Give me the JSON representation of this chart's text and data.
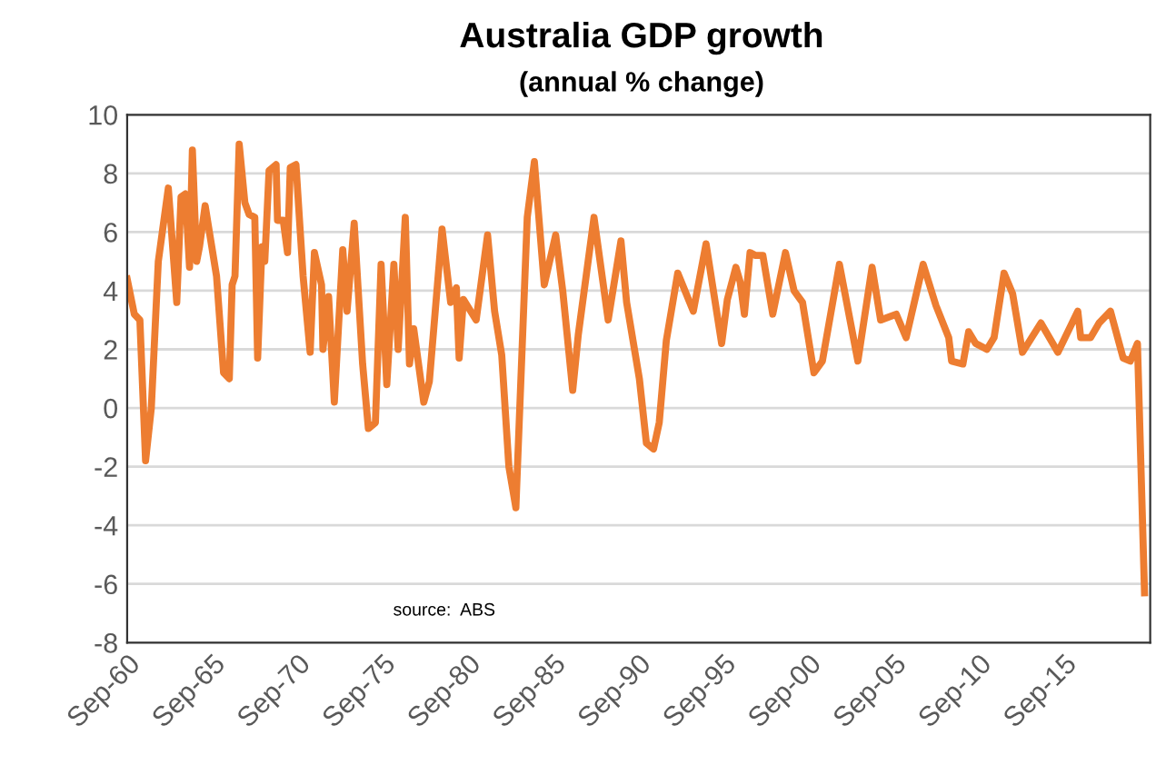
{
  "chart_data": {
    "type": "line",
    "title": "Australia GDP growth",
    "subtitle": "(annual % change)",
    "annotations": [
      "source:  ABS"
    ],
    "x": [
      "1960-09",
      "1961-02",
      "1961-06",
      "1961-10",
      "1962-02",
      "1962-07",
      "1963-02",
      "1963-08",
      "1963-11",
      "1964-02",
      "1964-05",
      "1964-07",
      "1964-10",
      "1964-12",
      "1965-04",
      "1965-07",
      "1965-12",
      "1966-05",
      "1966-09",
      "1966-11",
      "1967-01",
      "1967-04",
      "1967-08",
      "1967-11",
      "1968-03",
      "1968-05",
      "1968-08",
      "1968-10",
      "1969-01",
      "1969-06",
      "1969-07",
      "1969-11",
      "1970-02",
      "1970-04",
      "1970-08",
      "1971-01",
      "1971-06",
      "1971-09",
      "1972-02",
      "1972-03",
      "1972-07",
      "1972-11",
      "1973-05",
      "1973-08",
      "1974-01",
      "1974-07",
      "1974-11",
      "1975-04",
      "1975-08",
      "1975-12",
      "1976-05",
      "1976-08",
      "1977-01",
      "1977-04",
      "1977-07",
      "1978-02",
      "1978-06",
      "1979-03",
      "1979-09",
      "1980-01",
      "1980-03",
      "1980-06",
      "1981-03",
      "1981-11",
      "1982-04",
      "1982-09",
      "1983-02",
      "1983-07",
      "1984-03",
      "1984-08",
      "1985-03",
      "1985-11",
      "1986-04",
      "1986-11",
      "1987-03",
      "1988-02",
      "1988-12",
      "1989-09",
      "1990-01",
      "1990-10",
      "1991-03",
      "1991-08",
      "1991-12",
      "1992-05",
      "1993-01",
      "1993-12",
      "1994-09",
      "1995-08",
      "1995-12",
      "1996-06",
      "1996-09",
      "1996-12",
      "1997-04",
      "1997-08",
      "1998-01",
      "1998-08",
      "1999-05",
      "1999-11",
      "2000-05",
      "2001-01",
      "2001-07",
      "2002-07",
      "2003-08",
      "2004-06",
      "2004-12",
      "2005-11",
      "2006-06",
      "2007-06",
      "2008-03",
      "2008-12",
      "2009-02",
      "2009-10",
      "2010-02",
      "2010-07",
      "2011-03",
      "2011-08",
      "2012-03",
      "2012-09",
      "2013-04",
      "2014-05",
      "2015-05",
      "2016-07",
      "2016-09",
      "2017-04",
      "2017-10",
      "2018-06",
      "2019-03",
      "2019-08",
      "2020-01",
      "2020-06"
    ],
    "series": [
      {
        "color": "#ed7d31",
        "values": [
          4.4,
          3.2,
          3.0,
          -1.8,
          0,
          5.0,
          7.5,
          3.6,
          7.2,
          7.3,
          4.8,
          8.8,
          5.0,
          5.5,
          6.9,
          6.0,
          4.5,
          1.2,
          1.0,
          4.2,
          4.5,
          9.0,
          7.0,
          6.6,
          6.5,
          1.7,
          5.5,
          5.0,
          8.1,
          8.3,
          6.4,
          6.4,
          5.3,
          8.2,
          8.3,
          4.5,
          1.9,
          5.3,
          4.2,
          2.0,
          3.8,
          0.2,
          5.4,
          3.3,
          6.3,
          1.5,
          -0.7,
          -0.5,
          4.9,
          0.8,
          4.9,
          2.0,
          6.5,
          1.5,
          2.7,
          0.2,
          0.9,
          6.1,
          3.6,
          4.1,
          1.7,
          3.7,
          3.0,
          5.9,
          3.3,
          1.8,
          -2.0,
          -3.4,
          6.5,
          8.4,
          4.2,
          5.9,
          4.0,
          0.6,
          2.5,
          6.5,
          3.0,
          5.7,
          3.6,
          1.0,
          -1.2,
          -1.4,
          -0.5,
          2.3,
          4.6,
          3.3,
          5.6,
          2.2,
          3.7,
          4.8,
          4.3,
          3.2,
          5.3,
          5.2,
          5.2,
          3.2,
          5.3,
          4.0,
          3.6,
          1.2,
          1.6,
          4.9,
          1.6,
          4.8,
          3.0,
          3.2,
          2.4,
          4.9,
          3.5,
          2.4,
          1.6,
          1.5,
          2.6,
          2.2,
          2.0,
          2.4,
          4.6,
          3.9,
          1.9,
          2.9,
          1.9,
          3.3,
          2.4,
          2.4,
          2.9,
          3.3,
          1.7,
          1.6,
          2.2,
          -6.3
        ]
      }
    ],
    "xlim": [
      "1960-09",
      "2020-10"
    ],
    "xticks": [
      {
        "value": "1960-09",
        "label": "Sep-60"
      },
      {
        "value": "1965-09",
        "label": "Sep-65"
      },
      {
        "value": "1970-09",
        "label": "Sep-70"
      },
      {
        "value": "1975-09",
        "label": "Sep-75"
      },
      {
        "value": "1980-09",
        "label": "Sep-80"
      },
      {
        "value": "1985-09",
        "label": "Sep-85"
      },
      {
        "value": "1990-09",
        "label": "Sep-90"
      },
      {
        "value": "1995-09",
        "label": "Sep-95"
      },
      {
        "value": "2000-09",
        "label": "Sep-00"
      },
      {
        "value": "2005-09",
        "label": "Sep-05"
      },
      {
        "value": "2010-09",
        "label": "Sep-10"
      },
      {
        "value": "2015-09",
        "label": "Sep-15"
      }
    ],
    "ylim": [
      -8,
      10
    ],
    "yticks": [
      -8,
      -6,
      -4,
      -2,
      0,
      2,
      4,
      6,
      8,
      10
    ],
    "grid": "y",
    "legend": false,
    "marker": "none",
    "line_style": "solid"
  }
}
